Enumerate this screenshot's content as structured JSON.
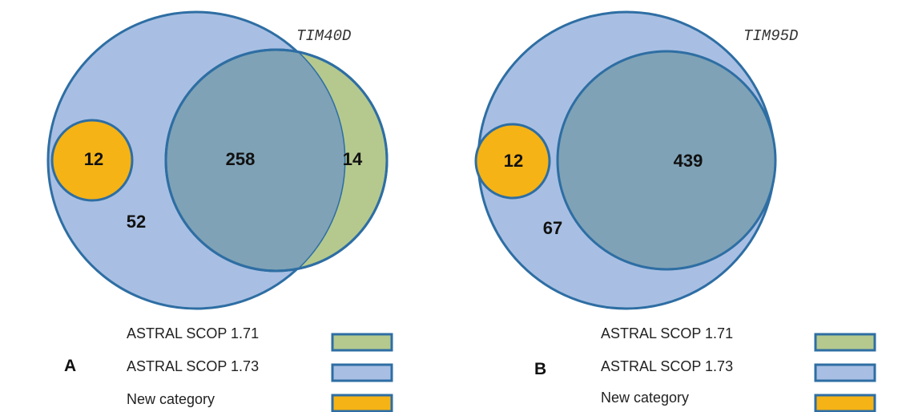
{
  "colors": {
    "astral_171": "#B5C98E",
    "astral_173": "#A8BFE3",
    "new_category": "#F5B316",
    "overlap": "#7FA2B6",
    "outline": "#2E6EA3"
  },
  "panels": [
    {
      "letter": "A",
      "title": "TIM40D",
      "new_category_count": "12",
      "only_173_count": "52",
      "overlap_count": "258",
      "only_171_count": "14"
    },
    {
      "letter": "B",
      "title": "TIM95D",
      "new_category_count": "12",
      "only_173_count": "67",
      "overlap_count": "439"
    }
  ],
  "legend": [
    {
      "label": "ASTRAL SCOP 1.71",
      "swatch": "astral_171"
    },
    {
      "label": "ASTRAL SCOP 1.73",
      "swatch": "astral_173"
    },
    {
      "label": "New category",
      "swatch": "new_category"
    }
  ]
}
